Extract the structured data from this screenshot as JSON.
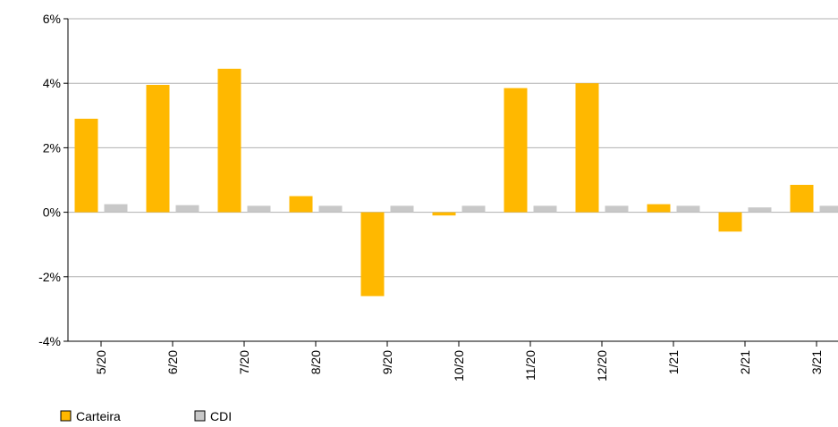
{
  "chart_data": {
    "type": "bar",
    "categories": [
      "5/20",
      "6/20",
      "7/20",
      "8/20",
      "9/20",
      "10/20",
      "11/20",
      "12/20",
      "1/21",
      "2/21",
      "3/21"
    ],
    "series": [
      {
        "name": "Carteira",
        "color": "#ffb800",
        "values": [
          2.9,
          3.95,
          4.45,
          0.5,
          -2.6,
          -0.1,
          3.85,
          4.0,
          0.25,
          -0.6,
          0.85
        ]
      },
      {
        "name": "CDI",
        "color": "#c8c8c8",
        "values": [
          0.25,
          0.22,
          0.2,
          0.2,
          0.2,
          0.2,
          0.2,
          0.2,
          0.2,
          0.15,
          0.2
        ]
      }
    ],
    "ylim": [
      -4,
      6
    ],
    "yticks": [
      {
        "value": -4,
        "label": "-4%"
      },
      {
        "value": -2,
        "label": "-2%"
      },
      {
        "value": 0,
        "label": "0%"
      },
      {
        "value": 2,
        "label": "2%"
      },
      {
        "value": 4,
        "label": "4%"
      },
      {
        "value": 6,
        "label": "6%"
      }
    ],
    "grid": true
  }
}
